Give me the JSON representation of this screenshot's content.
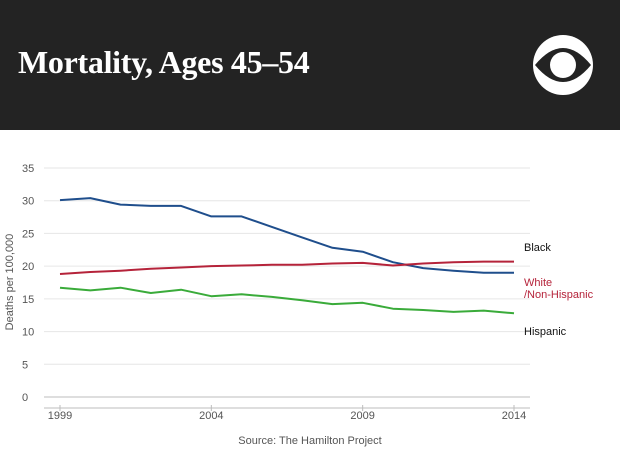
{
  "header": {
    "title": "Mortality, Ages 45–54",
    "logo_icon": "cbs-eye-logo-icon"
  },
  "source": "Source: The Hamilton Project",
  "colors": {
    "header_bg": "#232323",
    "black_series": "#1f4e8c",
    "white_series": "#b5233a",
    "hispanic_series": "#3aab3a",
    "grid": "#e6e6e6",
    "axis_text": "#555555"
  },
  "chart_data": {
    "type": "line",
    "title": "Mortality, Ages 45–54",
    "xlabel": "",
    "ylabel": "Deaths per 100,000",
    "xlim": [
      1999,
      2014
    ],
    "ylim": [
      0,
      35
    ],
    "x_ticks": [
      "1999",
      "2004",
      "2009",
      "2014"
    ],
    "y_ticks": [
      "0",
      "5",
      "10",
      "15",
      "20",
      "25",
      "30",
      "35"
    ],
    "grid": true,
    "x": [
      1999,
      2000,
      2001,
      2002,
      2003,
      2004,
      2005,
      2006,
      2007,
      2008,
      2009,
      2010,
      2011,
      2012,
      2013,
      2014
    ],
    "series": [
      {
        "name": "Black",
        "label_lines": [
          "Black"
        ],
        "values": [
          30.1,
          30.4,
          29.4,
          29.2,
          29.2,
          27.6,
          27.6,
          26.0,
          24.4,
          22.8,
          22.2,
          20.6,
          19.7,
          19.3,
          19.0,
          19.0
        ]
      },
      {
        "name": "White/Non-Hispanic",
        "label_lines": [
          "White",
          "/Non-Hispanic"
        ],
        "values": [
          18.8,
          19.1,
          19.3,
          19.6,
          19.8,
          20.0,
          20.1,
          20.2,
          20.2,
          20.4,
          20.5,
          20.1,
          20.4,
          20.6,
          20.7,
          20.7
        ]
      },
      {
        "name": "Hispanic",
        "label_lines": [
          "Hispanic"
        ],
        "values": [
          16.7,
          16.3,
          16.7,
          15.9,
          16.4,
          15.4,
          15.7,
          15.3,
          14.8,
          14.2,
          14.4,
          13.5,
          13.3,
          13.0,
          13.2,
          12.8
        ]
      }
    ]
  }
}
